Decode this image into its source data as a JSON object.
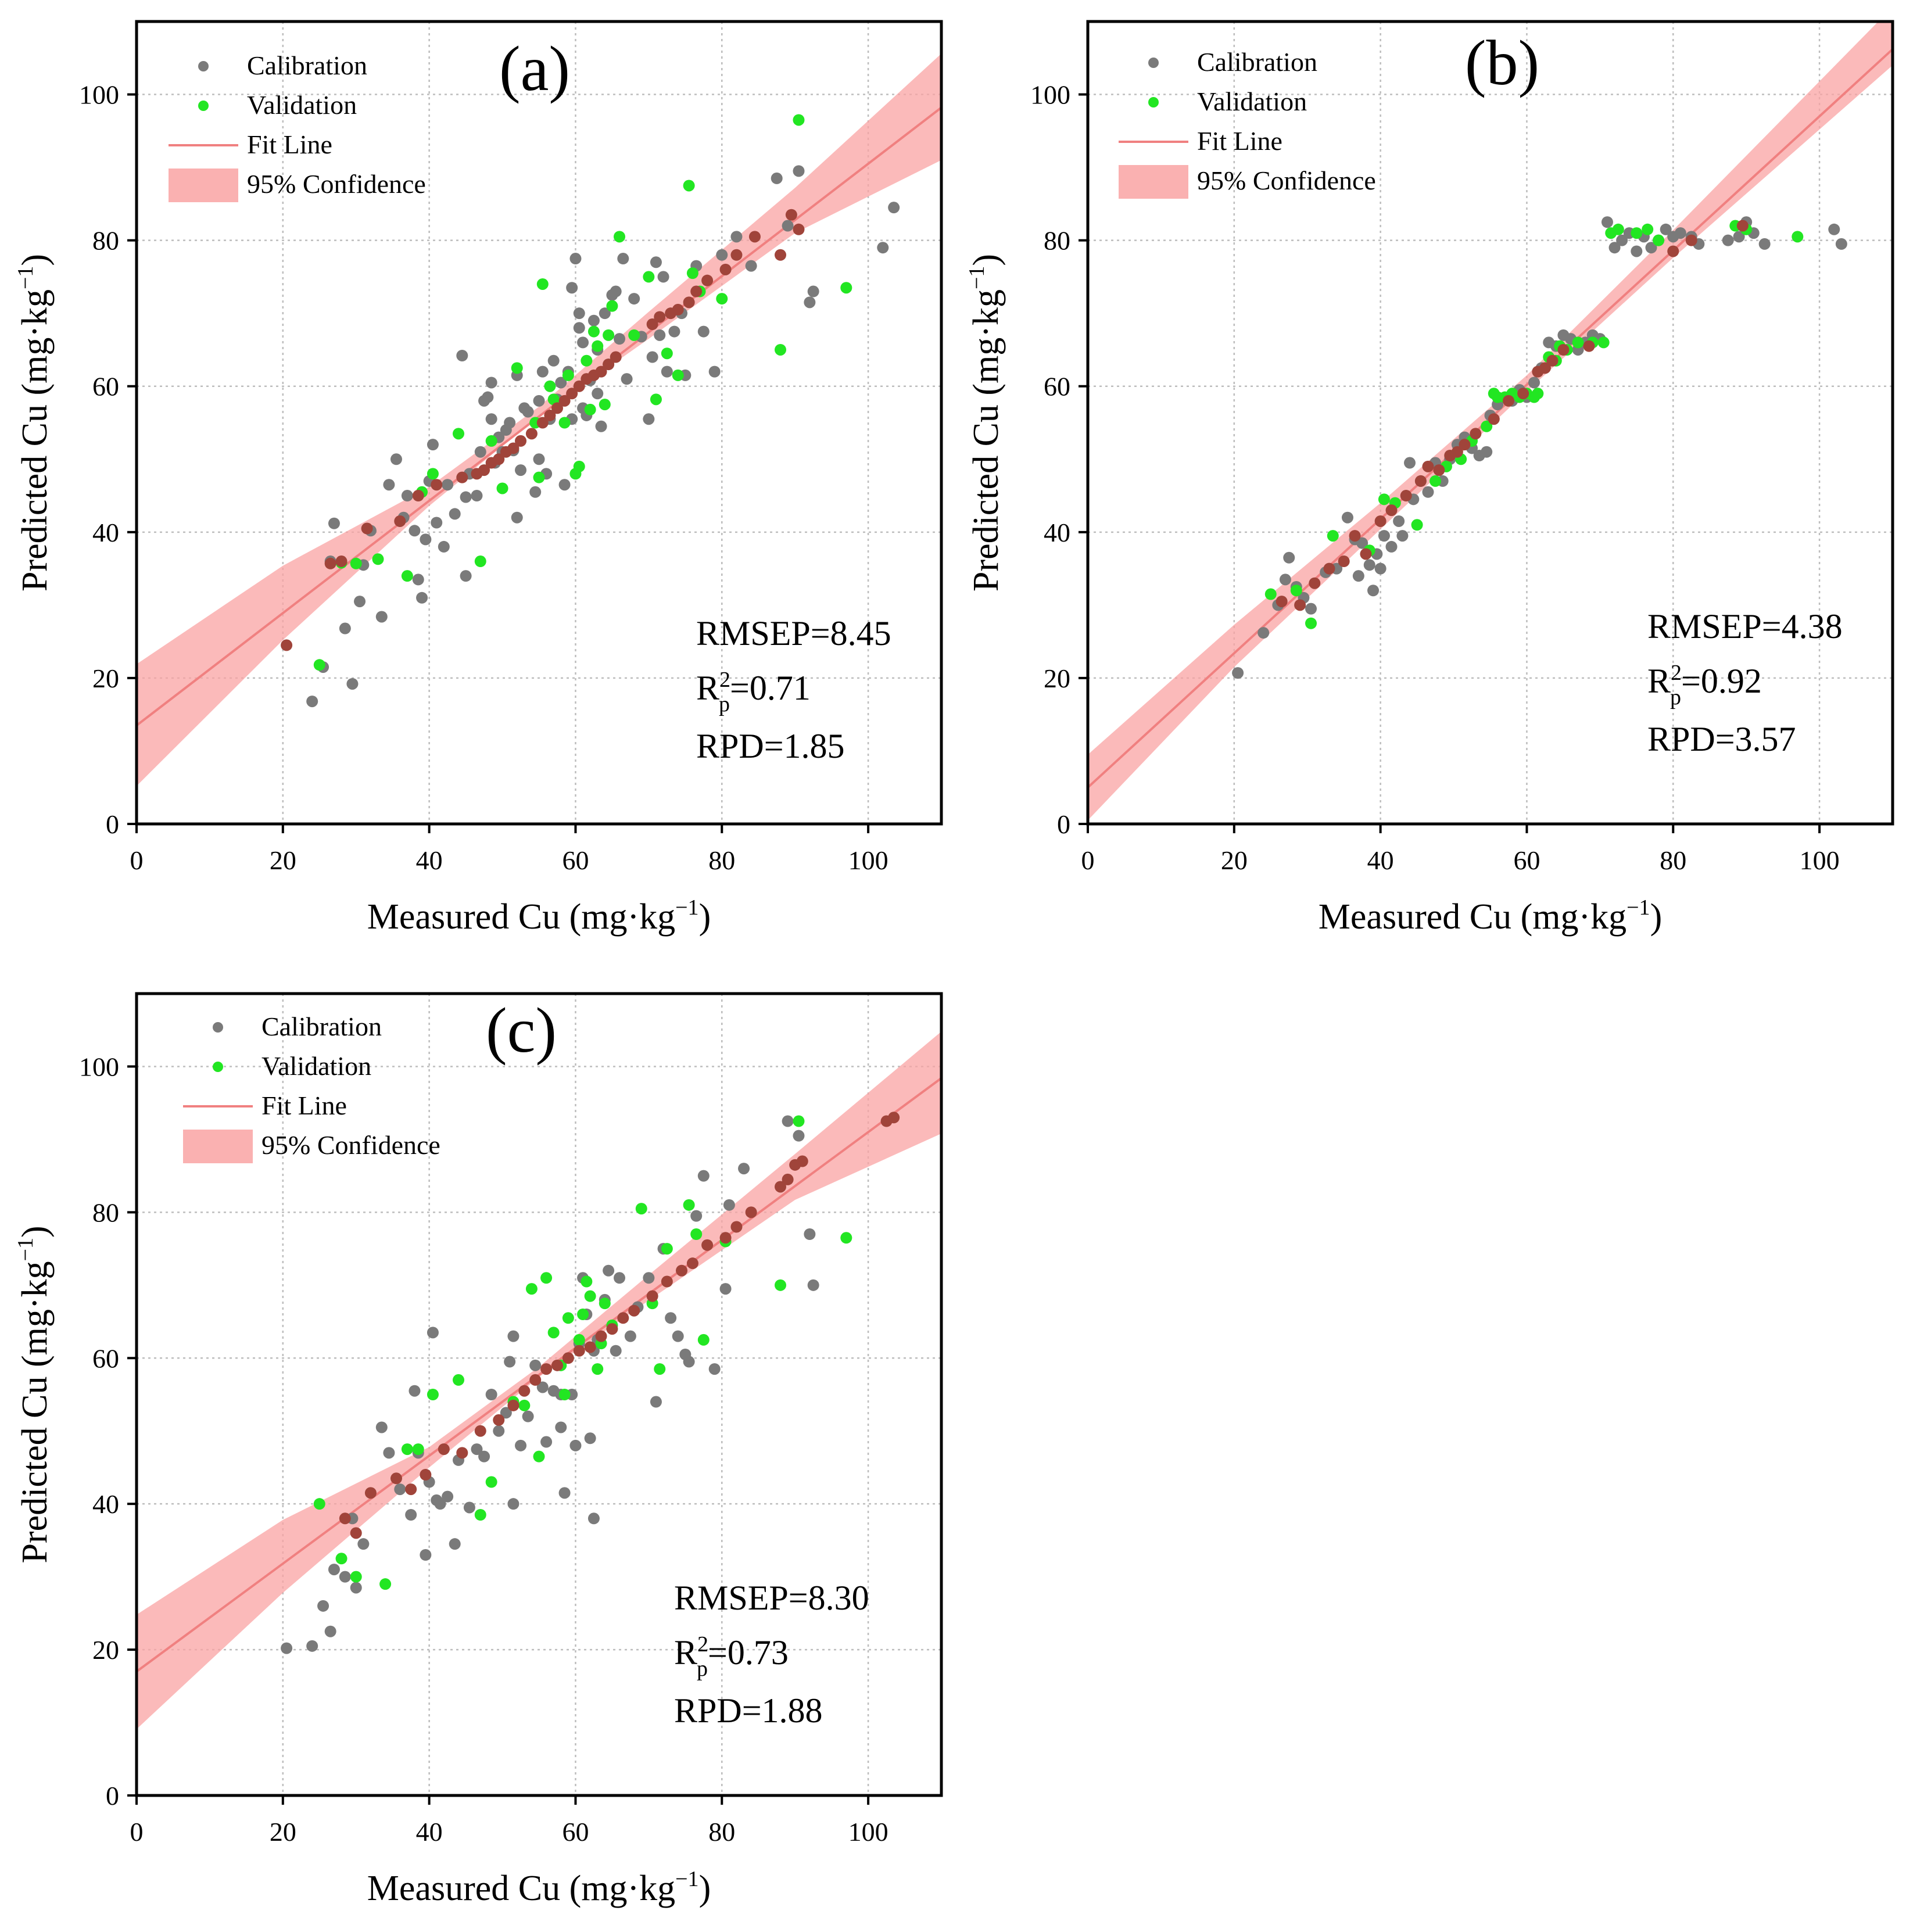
{
  "figure": {
    "panels": [
      "(a)",
      "(b)",
      "(c)"
    ],
    "legend": {
      "calibration": "Calibration",
      "validation": "Validation",
      "fit": "Fit Line",
      "ci": "95% Confidence"
    },
    "colors": {
      "calibration": "#7a7a7a",
      "validation": "#22e622",
      "fit": "#f08080",
      "ci": "#f9a3a3",
      "overlap": "#a0443a"
    }
  },
  "chart_data": [
    {
      "id": "a",
      "type": "scatter",
      "panel_label": "(a)",
      "xlabel": "Measured Cu (mg·kg",
      "ylabel": "Predicted Cu (mg·kg",
      "unit_exp": "−1",
      "xlim": [
        0,
        110
      ],
      "ylim": [
        0,
        110
      ],
      "xticks": [
        0,
        20,
        40,
        60,
        80,
        100
      ],
      "yticks": [
        0,
        20,
        40,
        60,
        80,
        100
      ],
      "grid": true,
      "legend_position": "top-left",
      "metrics": {
        "rmsep_label": "RMSEP=8.45",
        "r_prefix": "R",
        "r_sup": "2",
        "r_sub": "p",
        "r_value": "=0.71",
        "rpd_label": "RPD=1.85"
      },
      "fit": {
        "intercept": 13.5,
        "slope": 0.77
      },
      "ci": {
        "x": [
          0,
          20,
          40,
          55,
          70,
          90,
          110
        ],
        "lower": [
          5.2,
          25.2,
          43.6,
          55.9,
          66.5,
          81.0,
          91.0
        ],
        "upper": [
          21.9,
          35.4,
          46.2,
          57.2,
          70.2,
          87.2,
          105.6
        ]
      },
      "calibration": {
        "x": [
          24.0,
          25.5,
          26.5,
          27.0,
          28.5,
          29.5,
          30.5,
          31.0,
          32.0,
          33.5,
          34.5,
          35.5,
          36.5,
          37.0,
          38.0,
          38.5,
          39.0,
          39.5,
          40.0,
          40.5,
          41.0,
          42.0,
          42.5,
          43.5,
          44.5,
          45.0,
          45.5,
          46.5,
          47.0,
          47.5,
          48.0,
          48.5,
          49.0,
          49.5,
          50.0,
          50.5,
          51.0,
          51.5,
          52.0,
          52.5,
          53.0,
          53.5,
          54.5,
          55.0,
          55.5,
          56.0,
          56.5,
          57.0,
          57.5,
          58.0,
          58.5,
          59.0,
          59.5,
          60.0,
          60.5,
          61.0,
          61.5,
          62.0,
          62.5,
          63.0,
          63.5,
          64.0,
          64.5,
          65.0,
          65.5,
          66.0,
          67.0,
          68.0,
          69.0,
          70.0,
          70.5,
          71.0,
          71.5,
          72.0,
          72.5,
          73.5,
          74.5,
          75.0,
          76.5,
          77.5,
          79.0,
          80.0,
          82.0,
          84.0,
          87.5,
          89.0,
          90.5,
          92.0,
          92.5,
          102.0,
          103.5,
          59.5,
          55.0,
          45.0,
          61.0,
          66.5,
          60.5,
          52.0,
          48.5,
          63.0
        ],
        "y": [
          16.8,
          21.5,
          36.0,
          41.2,
          26.8,
          19.2,
          30.5,
          35.5,
          40.2,
          28.4,
          46.5,
          50.0,
          42.0,
          45.0,
          40.2,
          33.5,
          31.0,
          39.0,
          47.0,
          52.0,
          41.3,
          38.0,
          46.5,
          42.5,
          64.2,
          34.0,
          48.0,
          45.0,
          51.0,
          58.0,
          58.5,
          55.5,
          49.5,
          53.0,
          51.0,
          54.0,
          55.0,
          51.2,
          42.0,
          48.5,
          57.0,
          56.5,
          45.5,
          50.0,
          62.0,
          48.0,
          55.5,
          63.5,
          58.2,
          60.5,
          46.5,
          62.0,
          55.5,
          77.5,
          68.0,
          66.0,
          56.0,
          60.8,
          69.0,
          59.0,
          54.5,
          70.0,
          63.0,
          72.5,
          73.0,
          66.5,
          61.0,
          72.0,
          66.8,
          55.5,
          64.0,
          77.0,
          67.0,
          75.0,
          62.0,
          67.5,
          70.0,
          61.5,
          76.5,
          67.5,
          62.0,
          78.0,
          80.5,
          76.5,
          88.5,
          82.0,
          89.5,
          71.5,
          73.0,
          79.0,
          84.5,
          73.5,
          58.0,
          44.8,
          57.0,
          77.5,
          70.0,
          61.5,
          60.5,
          65.0
        ]
      },
      "validation": {
        "x": [
          25.0,
          28.0,
          30.0,
          33.0,
          37.0,
          39.0,
          40.5,
          44.0,
          47.0,
          48.5,
          50.0,
          52.0,
          54.5,
          55.5,
          56.5,
          57.0,
          58.5,
          60.0,
          60.5,
          61.5,
          62.0,
          62.5,
          63.0,
          64.0,
          65.0,
          66.0,
          68.0,
          70.0,
          71.0,
          72.5,
          74.0,
          75.5,
          76.0,
          77.0,
          80.0,
          88.0,
          90.5,
          97.0,
          55.0,
          59.0,
          64.5
        ],
        "y": [
          21.8,
          35.8,
          35.7,
          36.3,
          34.0,
          45.5,
          48.0,
          53.5,
          36.0,
          52.5,
          46.0,
          62.5,
          55.0,
          74.0,
          60.0,
          58.2,
          55.0,
          48.0,
          49.0,
          63.5,
          56.8,
          67.5,
          65.5,
          57.5,
          71.0,
          80.5,
          67.0,
          75.0,
          58.2,
          64.5,
          61.5,
          87.5,
          75.5,
          73.0,
          72.0,
          65.0,
          96.5,
          73.5,
          47.5,
          61.5,
          67.0
        ]
      },
      "overlap": {
        "x": [
          20.5,
          26.5,
          28.0,
          31.5,
          36.0,
          38.5,
          41.0,
          44.5,
          46.5,
          47.5,
          48.5,
          49.5,
          50.5,
          51.5,
          52.5,
          54.0,
          55.5,
          56.5,
          57.5,
          58.5,
          59.5,
          60.5,
          61.5,
          62.5,
          63.5,
          64.5,
          65.5,
          70.5,
          71.5,
          73.0,
          74.0,
          75.5,
          76.5,
          78.0,
          80.5,
          82.0,
          84.5,
          88.0,
          89.5,
          90.5
        ],
        "y": [
          24.5,
          35.7,
          36.0,
          40.5,
          41.5,
          45.0,
          46.5,
          47.5,
          48.0,
          48.5,
          49.5,
          50.0,
          51.0,
          51.5,
          52.5,
          53.5,
          55.0,
          56.0,
          57.0,
          58.0,
          59.0,
          60.0,
          61.0,
          61.5,
          62.0,
          63.0,
          64.0,
          68.5,
          69.5,
          70.0,
          70.5,
          71.5,
          73.0,
          74.5,
          76.0,
          78.0,
          80.5,
          78.0,
          83.5,
          81.5
        ]
      }
    },
    {
      "id": "b",
      "type": "scatter",
      "panel_label": "(b)",
      "xlabel": "Measured Cu (mg·kg",
      "ylabel": "Predicted Cu (mg·kg",
      "unit_exp": "−1",
      "xlim": [
        0,
        110
      ],
      "ylim": [
        0,
        110
      ],
      "xticks": [
        0,
        20,
        40,
        60,
        80,
        100
      ],
      "yticks": [
        0,
        20,
        40,
        60,
        80,
        100
      ],
      "grid": true,
      "legend_position": "top-left",
      "metrics": {
        "rmsep_label": "RMSEP=4.38",
        "r_prefix": "R",
        "r_sup": "2",
        "r_sub": "p",
        "r_value": "=0.92",
        "rpd_label": "RPD=3.57"
      },
      "fit": {
        "intercept": 5.0,
        "slope": 0.92
      },
      "ci": {
        "x": [
          0,
          20,
          40,
          60,
          80,
          110
        ],
        "lower": [
          0.5,
          21.5,
          40.4,
          59.3,
          77.6,
          104.0
        ],
        "upper": [
          9.5,
          27.3,
          44.0,
          61.5,
          81.4,
          112.0
        ]
      },
      "calibration": {
        "x": [
          20.5,
          24.0,
          26.0,
          27.0,
          27.5,
          28.5,
          29.5,
          30.5,
          32.5,
          34.0,
          35.5,
          36.5,
          37.0,
          37.5,
          38.5,
          39.0,
          39.5,
          40.0,
          40.5,
          41.5,
          42.5,
          43.0,
          44.0,
          44.5,
          45.5,
          46.5,
          47.5,
          48.5,
          49.5,
          50.5,
          51.5,
          52.5,
          53.5,
          54.5,
          55.0,
          56.0,
          58.0,
          59.0,
          60.0,
          61.0,
          62.0,
          63.0,
          64.0,
          65.0,
          66.0,
          67.0,
          68.0,
          69.0,
          70.0,
          71.0,
          72.0,
          73.0,
          74.0,
          75.0,
          76.0,
          77.0,
          78.0,
          79.0,
          80.0,
          81.0,
          82.5,
          83.5,
          87.5,
          89.0,
          90.0,
          91.0,
          92.5,
          102.0,
          103.0
        ],
        "y": [
          20.7,
          26.2,
          30.0,
          33.5,
          36.5,
          32.5,
          31.0,
          29.5,
          34.5,
          35.0,
          42.0,
          39.0,
          34.0,
          38.5,
          35.5,
          32.0,
          37.0,
          35.0,
          39.5,
          38.0,
          41.5,
          39.5,
          49.5,
          44.5,
          47.0,
          45.5,
          49.5,
          47.0,
          50.0,
          52.0,
          53.0,
          51.5,
          50.5,
          51.0,
          56.0,
          57.5,
          58.0,
          59.5,
          58.5,
          60.5,
          62.5,
          66.0,
          65.5,
          67.0,
          66.5,
          65.0,
          66.0,
          67.0,
          66.5,
          82.5,
          79.0,
          80.0,
          81.0,
          78.5,
          80.5,
          79.0,
          80.0,
          81.5,
          80.5,
          81.0,
          80.5,
          79.5,
          80.0,
          80.5,
          82.5,
          81.0,
          79.5,
          81.5,
          79.5
        ]
      },
      "validation": {
        "x": [
          25.0,
          28.5,
          30.5,
          33.5,
          38.5,
          40.5,
          45.0,
          47.5,
          49.0,
          51.0,
          52.5,
          54.5,
          55.5,
          56.0,
          57.0,
          58.0,
          59.0,
          60.0,
          61.5,
          63.0,
          64.0,
          65.5,
          67.0,
          69.0,
          70.5,
          71.5,
          72.5,
          75.0,
          76.5,
          78.0,
          88.5,
          90.0,
          97.0,
          61.0,
          42.0,
          64.5
        ],
        "y": [
          31.5,
          32.0,
          27.5,
          39.5,
          37.5,
          44.5,
          41.0,
          47.0,
          49.0,
          50.0,
          52.5,
          54.5,
          59.0,
          58.5,
          58.5,
          59.0,
          58.5,
          59.0,
          59.0,
          64.0,
          63.5,
          65.0,
          66.0,
          66.0,
          66.0,
          81.0,
          81.5,
          81.0,
          81.5,
          80.0,
          82.0,
          81.5,
          80.5,
          58.5,
          44.0,
          65.5
        ]
      },
      "overlap": {
        "x": [
          26.5,
          29.0,
          31.0,
          33.0,
          35.0,
          36.5,
          38.0,
          40.0,
          41.5,
          43.5,
          45.5,
          46.5,
          48.0,
          49.5,
          50.5,
          51.5,
          53.0,
          55.5,
          57.5,
          59.5,
          61.5,
          62.5,
          63.5,
          65.0,
          68.5,
          80.0,
          82.5,
          89.5
        ],
        "y": [
          30.5,
          30.0,
          33.0,
          35.0,
          36.0,
          39.5,
          37.0,
          41.5,
          43.0,
          45.0,
          47.0,
          49.0,
          48.5,
          50.5,
          51.0,
          52.0,
          53.5,
          55.5,
          58.0,
          59.0,
          62.0,
          62.5,
          63.5,
          65.0,
          65.5,
          78.5,
          80.0,
          82.0
        ]
      }
    },
    {
      "id": "c",
      "type": "scatter",
      "panel_label": "(c)",
      "xlabel": "Measured Cu (mg·kg",
      "ylabel": "Predicted Cu (mg·kg",
      "unit_exp": "−1",
      "xlim": [
        0,
        110
      ],
      "ylim": [
        0,
        110
      ],
      "xticks": [
        0,
        20,
        40,
        60,
        80,
        100
      ],
      "yticks": [
        0,
        20,
        40,
        60,
        80,
        100
      ],
      "grid": true,
      "legend_position": "top-left",
      "metrics": {
        "rmsep_label": "RMSEP=8.30",
        "r_prefix": "R",
        "r_sup": "2",
        "r_sub": "p",
        "r_value": "=0.73",
        "rpd_label": "RPD=1.88"
      },
      "fit": {
        "intercept": 17.0,
        "slope": 0.74
      },
      "ci": {
        "x": [
          0,
          20,
          40,
          55,
          70,
          90,
          110
        ],
        "lower": [
          9.1,
          27.8,
          45.0,
          57.4,
          67.9,
          81.7,
          90.8
        ],
        "upper": [
          24.8,
          37.8,
          47.8,
          58.8,
          71.4,
          88.0,
          104.8
        ]
      },
      "calibration": {
        "x": [
          20.5,
          24.0,
          25.5,
          26.5,
          27.0,
          28.5,
          29.5,
          30.0,
          31.0,
          33.5,
          34.5,
          36.0,
          37.5,
          38.0,
          38.5,
          39.5,
          40.0,
          40.5,
          41.5,
          42.5,
          43.5,
          44.0,
          45.5,
          46.5,
          47.5,
          48.5,
          49.5,
          50.5,
          51.0,
          51.5,
          52.5,
          53.5,
          54.5,
          55.5,
          56.0,
          57.0,
          58.0,
          58.5,
          59.5,
          60.0,
          60.5,
          61.0,
          61.5,
          62.0,
          62.5,
          63.0,
          64.0,
          64.5,
          65.5,
          66.0,
          67.5,
          68.5,
          70.0,
          71.0,
          72.0,
          73.0,
          74.0,
          75.0,
          75.5,
          76.5,
          77.5,
          79.0,
          80.5,
          81.0,
          83.0,
          89.0,
          90.5,
          92.0,
          92.5,
          62.5,
          41.0,
          51.5,
          58.0
        ],
        "y": [
          20.2,
          20.5,
          26.0,
          22.5,
          31.0,
          30.0,
          38.0,
          28.5,
          34.5,
          50.5,
          47.0,
          42.0,
          38.5,
          55.5,
          47.0,
          33.0,
          43.0,
          63.5,
          40.0,
          41.0,
          34.5,
          46.0,
          39.5,
          47.5,
          46.5,
          55.0,
          50.0,
          52.5,
          59.5,
          63.0,
          48.0,
          52.0,
          59.0,
          56.0,
          48.5,
          55.5,
          50.5,
          41.5,
          55.0,
          48.0,
          62.0,
          71.0,
          66.0,
          49.0,
          61.0,
          62.5,
          68.0,
          72.0,
          61.0,
          71.0,
          63.0,
          67.0,
          71.0,
          54.0,
          75.0,
          65.5,
          63.0,
          60.5,
          59.5,
          79.5,
          85.0,
          58.5,
          69.5,
          81.0,
          86.0,
          92.5,
          90.5,
          77.0,
          70.0,
          38.0,
          40.5,
          40.0,
          55.0
        ]
      },
      "validation": {
        "x": [
          25.0,
          28.0,
          30.0,
          34.0,
          37.0,
          38.5,
          40.5,
          44.0,
          47.0,
          48.5,
          51.5,
          53.0,
          54.0,
          55.0,
          56.0,
          57.0,
          58.0,
          59.0,
          60.5,
          61.5,
          62.0,
          63.0,
          64.0,
          65.0,
          69.0,
          70.5,
          71.5,
          72.5,
          75.5,
          76.5,
          77.5,
          80.5,
          88.0,
          90.5,
          97.0,
          58.5,
          61.0,
          63.5
        ],
        "y": [
          40.0,
          32.5,
          30.0,
          29.0,
          47.5,
          47.5,
          55.0,
          57.0,
          38.5,
          43.0,
          54.0,
          53.5,
          69.5,
          46.5,
          71.0,
          63.5,
          59.0,
          65.5,
          62.5,
          70.5,
          68.5,
          58.5,
          67.5,
          64.5,
          80.5,
          67.5,
          58.5,
          75.0,
          81.0,
          77.0,
          62.5,
          76.0,
          70.0,
          92.5,
          76.5,
          55.0,
          66.0,
          62.0
        ]
      },
      "overlap": {
        "x": [
          28.5,
          30.0,
          32.0,
          35.5,
          37.5,
          39.5,
          42.0,
          44.5,
          47.0,
          49.5,
          51.5,
          53.0,
          54.5,
          56.0,
          57.5,
          59.0,
          60.5,
          62.0,
          63.5,
          65.0,
          66.5,
          68.0,
          70.5,
          72.5,
          74.5,
          76.0,
          78.0,
          80.5,
          82.0,
          84.0,
          88.0,
          89.0,
          90.0,
          91.0,
          102.5,
          103.5
        ],
        "y": [
          38.0,
          36.0,
          41.5,
          43.5,
          42.0,
          44.0,
          47.5,
          47.0,
          50.0,
          51.5,
          53.5,
          55.5,
          57.0,
          58.5,
          59.0,
          60.0,
          61.0,
          61.5,
          63.0,
          64.0,
          65.5,
          66.5,
          68.5,
          70.5,
          72.0,
          73.0,
          75.5,
          76.5,
          78.0,
          80.0,
          83.5,
          84.5,
          86.5,
          87.0,
          92.5,
          93.0
        ]
      }
    }
  ]
}
